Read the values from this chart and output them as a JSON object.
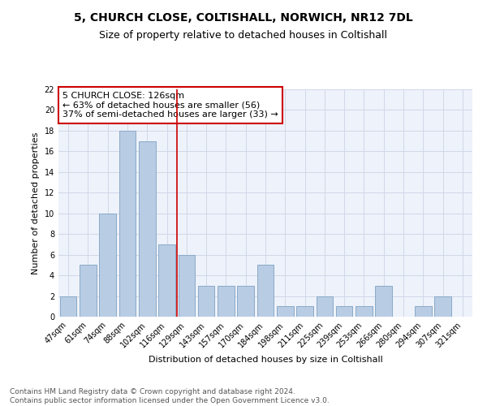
{
  "title1": "5, CHURCH CLOSE, COLTISHALL, NORWICH, NR12 7DL",
  "title2": "Size of property relative to detached houses in Coltishall",
  "xlabel": "Distribution of detached houses by size in Coltishall",
  "ylabel": "Number of detached properties",
  "categories": [
    "47sqm",
    "61sqm",
    "74sqm",
    "88sqm",
    "102sqm",
    "116sqm",
    "129sqm",
    "143sqm",
    "157sqm",
    "170sqm",
    "184sqm",
    "198sqm",
    "211sqm",
    "225sqm",
    "239sqm",
    "253sqm",
    "266sqm",
    "280sqm",
    "294sqm",
    "307sqm",
    "321sqm"
  ],
  "values": [
    2,
    5,
    10,
    18,
    17,
    7,
    6,
    3,
    3,
    3,
    5,
    1,
    1,
    2,
    1,
    1,
    3,
    0,
    1,
    2,
    0
  ],
  "bar_color": "#b8cce4",
  "bar_edgecolor": "#8aaac8",
  "subject_line_index": 5.5,
  "subject_line_color": "#cc0000",
  "annotation_text": "5 CHURCH CLOSE: 126sqm\n← 63% of detached houses are smaller (56)\n37% of semi-detached houses are larger (33) →",
  "annotation_box_color": "#cc0000",
  "ylim": [
    0,
    22
  ],
  "yticks": [
    0,
    2,
    4,
    6,
    8,
    10,
    12,
    14,
    16,
    18,
    20,
    22
  ],
  "grid_color": "#d0d8e8",
  "background_color": "#eef2fa",
  "footer_text": "Contains HM Land Registry data © Crown copyright and database right 2024.\nContains public sector information licensed under the Open Government Licence v3.0.",
  "title_fontsize": 10,
  "subtitle_fontsize": 9,
  "axis_label_fontsize": 8,
  "tick_fontsize": 7,
  "annotation_fontsize": 8,
  "footer_fontsize": 6.5
}
